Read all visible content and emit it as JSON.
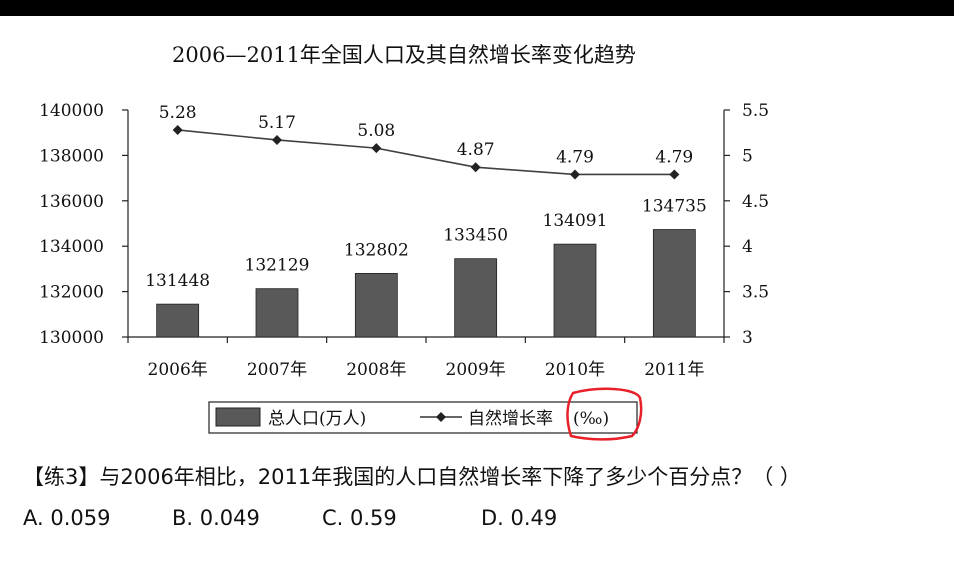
{
  "chart_data": {
    "type": "bar+line",
    "title": "2006—2011年全国人口及其自然增长率变化趋势",
    "categories": [
      "2006年",
      "2007年",
      "2008年",
      "2009年",
      "2010年",
      "2011年"
    ],
    "series": [
      {
        "name": "总人口(万人)",
        "type": "bar",
        "axis": "left",
        "values": [
          131448,
          132129,
          132802,
          133450,
          134091,
          134735
        ]
      },
      {
        "name": "自然增长率",
        "type": "line",
        "axis": "right",
        "values": [
          5.28,
          5.17,
          5.08,
          4.87,
          4.79,
          4.79
        ]
      }
    ],
    "y_left": {
      "min": 130000,
      "max": 140000,
      "ticks": [
        "130000",
        "132000",
        "134000",
        "136000",
        "138000",
        "140000"
      ]
    },
    "y_right": {
      "min": 3,
      "max": 5.5,
      "ticks": [
        "3",
        "3.5",
        "4",
        "4.5",
        "5",
        "5.5"
      ]
    },
    "bar_labels": [
      "131448",
      "132129",
      "132802",
      "133450",
      "134091",
      "134735"
    ],
    "line_labels": [
      "5.28",
      "5.17",
      "5.08",
      "4.87",
      "4.79",
      "4.79"
    ],
    "legend": {
      "position": "bottom",
      "bar_label": "总人口(万人)",
      "line_label": "自然增长率",
      "unit": "(‰)"
    },
    "grid": false,
    "colors": {
      "bar": "#595959",
      "line": "#404040",
      "highlight": "#e8202a"
    }
  },
  "question": {
    "text": "【练3】与2006年相比，2011年我国的人口自然增长率下降了多少个百分点？（    ）",
    "options": [
      "A. 0.059",
      "B. 0.049",
      "C. 0.59",
      "D. 0.49"
    ]
  }
}
